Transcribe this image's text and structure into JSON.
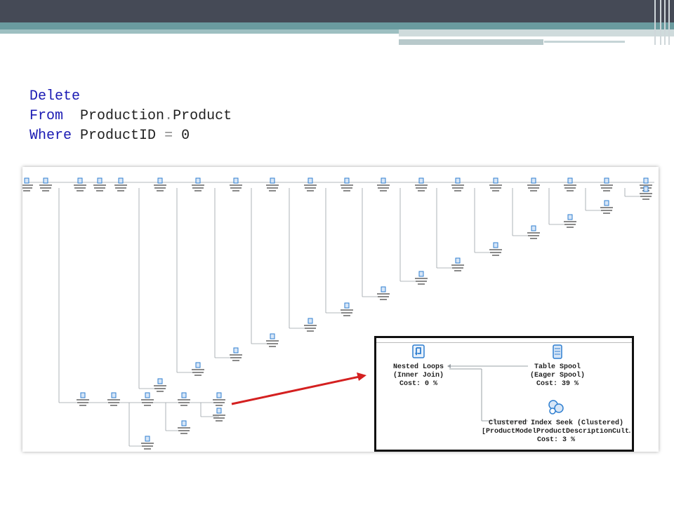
{
  "sql": {
    "line1": {
      "keyword": "Delete"
    },
    "line2": {
      "keyword": "From",
      "object": "Production",
      "dot": ".",
      "name": "Product"
    },
    "line3": {
      "keyword": "Where",
      "column": "ProductID",
      "operator": "=",
      "value": "0"
    }
  },
  "callout": {
    "nested_loops": {
      "title": "Nested Loops",
      "subtitle": "(Inner Join)",
      "cost": "Cost: 0 %"
    },
    "table_spool": {
      "title": "Table Spool",
      "subtitle": "(Eager Spool)",
      "cost": "Cost: 39 %"
    },
    "index_seek": {
      "title": "Clustered Index Seek (Clustered)",
      "subtitle": "[ProductModelProductDescriptionCult…",
      "cost": "Cost: 3 %"
    }
  },
  "colors": {
    "keyword": "#1a1ab3",
    "arrow": "#d42020",
    "icon": "#2f7fd0",
    "connector": "#9aa0a6"
  },
  "icons": [
    "nested-loops-icon",
    "table-spool-icon",
    "clustered-index-seek-icon"
  ]
}
